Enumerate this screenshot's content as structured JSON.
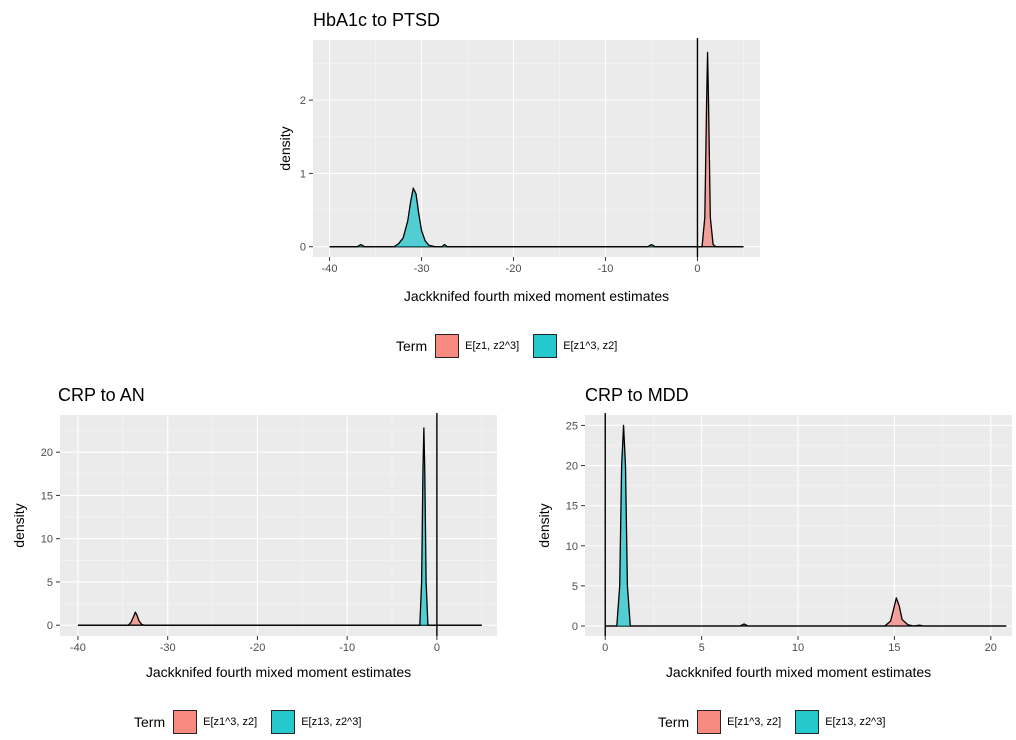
{
  "chart_data": [
    {
      "type": "area",
      "title": "HbA1c to PTSD",
      "xlabel": "Jackknifed fourth mixed moment estimates",
      "ylabel": "density",
      "xlim": [
        -41.8,
        6.8
      ],
      "ylim": [
        -0.14,
        2.82
      ],
      "xticks": [
        -40,
        -30,
        -20,
        -10,
        0
      ],
      "yticks": [
        0,
        1,
        2
      ],
      "vline": 0,
      "grid": true,
      "legend_position": "bottom",
      "legend": {
        "title": "Term",
        "labels": [
          "E[z1, z2^3]",
          "E[z1^3, z2]"
        ],
        "colors": [
          "#f8766d",
          "#00bfc4"
        ]
      },
      "series": [
        {
          "name": "E[z1, z2^3]",
          "color": "#f8766d",
          "x": [
            -40,
            0.5,
            0.8,
            1.0,
            1.1,
            1.2,
            1.4,
            1.7,
            2.0,
            5.0
          ],
          "y": [
            0,
            0,
            0.4,
            2.0,
            2.65,
            2.0,
            0.4,
            0.03,
            0,
            0
          ]
        },
        {
          "name": "E[z1^3, z2]",
          "color": "#00bfc4",
          "x": [
            -40,
            -37,
            -36.6,
            -36.2,
            -33,
            -32.5,
            -32,
            -31.5,
            -31.2,
            -30.9,
            -30.6,
            -30.3,
            -30,
            -29.6,
            -29.2,
            -28.5,
            -27.8,
            -27.5,
            -27.2,
            -26.5,
            -20,
            -5.4,
            -5,
            -4.6,
            -2,
            5.0
          ],
          "y": [
            0,
            0,
            0.03,
            0,
            0,
            0.04,
            0.12,
            0.35,
            0.6,
            0.8,
            0.72,
            0.45,
            0.22,
            0.08,
            0.02,
            0,
            0,
            0.03,
            0,
            0,
            0,
            0,
            0.03,
            0,
            0,
            0
          ]
        }
      ]
    },
    {
      "type": "area",
      "title": "CRP to AN",
      "xlabel": "Jackknifed fourth mixed moment estimates",
      "ylabel": "density",
      "xlim": [
        -42.0,
        6.7
      ],
      "ylim": [
        -1.25,
        24.3
      ],
      "xticks": [
        -40,
        -30,
        -20,
        -10,
        0
      ],
      "yticks": [
        0,
        5,
        10,
        15,
        20
      ],
      "vline": 0,
      "grid": true,
      "legend_position": "bottom",
      "legend": {
        "title": "Term",
        "labels": [
          "E[z1^3, z2]",
          "E[z13, z2^3]"
        ],
        "colors": [
          "#f8766d",
          "#00bfc4"
        ]
      },
      "series": [
        {
          "name": "E[z1^3, z2]",
          "color": "#f8766d",
          "x": [
            -40,
            -34.4,
            -34.1,
            -33.8,
            -33.6,
            -33.4,
            -33.2,
            -32.9,
            -32.6,
            -20,
            5.0
          ],
          "y": [
            0,
            0,
            0.3,
            1.0,
            1.5,
            1.1,
            0.5,
            0.1,
            0,
            0,
            0
          ]
        },
        {
          "name": "E[z13, z2^3]",
          "color": "#00bfc4",
          "x": [
            -40,
            -1.9,
            -1.7,
            -1.55,
            -1.45,
            -1.35,
            -1.2,
            -1.0,
            5.0
          ],
          "y": [
            0,
            0,
            5,
            18,
            22.8,
            18,
            5,
            0,
            0
          ]
        }
      ]
    },
    {
      "type": "area",
      "title": "CRP to MDD",
      "xlabel": "Jackknifed fourth mixed moment estimates",
      "ylabel": "density",
      "xlim": [
        -1.05,
        21.1
      ],
      "ylim": [
        -1.25,
        26.3
      ],
      "xticks": [
        0,
        5,
        10,
        15,
        20
      ],
      "yticks": [
        0,
        5,
        10,
        15,
        20,
        25
      ],
      "vline": 0,
      "grid": true,
      "legend_position": "bottom",
      "legend": {
        "title": "Term",
        "labels": [
          "E[z1^3, z2]",
          "E[z13, z2^3]"
        ],
        "colors": [
          "#f8766d",
          "#00bfc4"
        ]
      },
      "series": [
        {
          "name": "E[z1^3, z2]",
          "color": "#f8766d",
          "x": [
            0,
            7.0,
            7.2,
            7.4,
            14.5,
            14.8,
            14.95,
            15.1,
            15.25,
            15.4,
            15.7,
            16.0,
            16.3,
            16.5,
            20.8
          ],
          "y": [
            0,
            0,
            0.25,
            0,
            0,
            0.6,
            2.0,
            3.5,
            2.5,
            0.8,
            0.15,
            0,
            0.1,
            0,
            0
          ]
        },
        {
          "name": "E[z13, z2^3]",
          "color": "#00bfc4",
          "x": [
            0,
            0.6,
            0.75,
            0.85,
            0.95,
            1.05,
            1.15,
            1.3,
            20.8
          ],
          "y": [
            0,
            0,
            5,
            20,
            25,
            20,
            5,
            0,
            0
          ]
        }
      ]
    }
  ]
}
